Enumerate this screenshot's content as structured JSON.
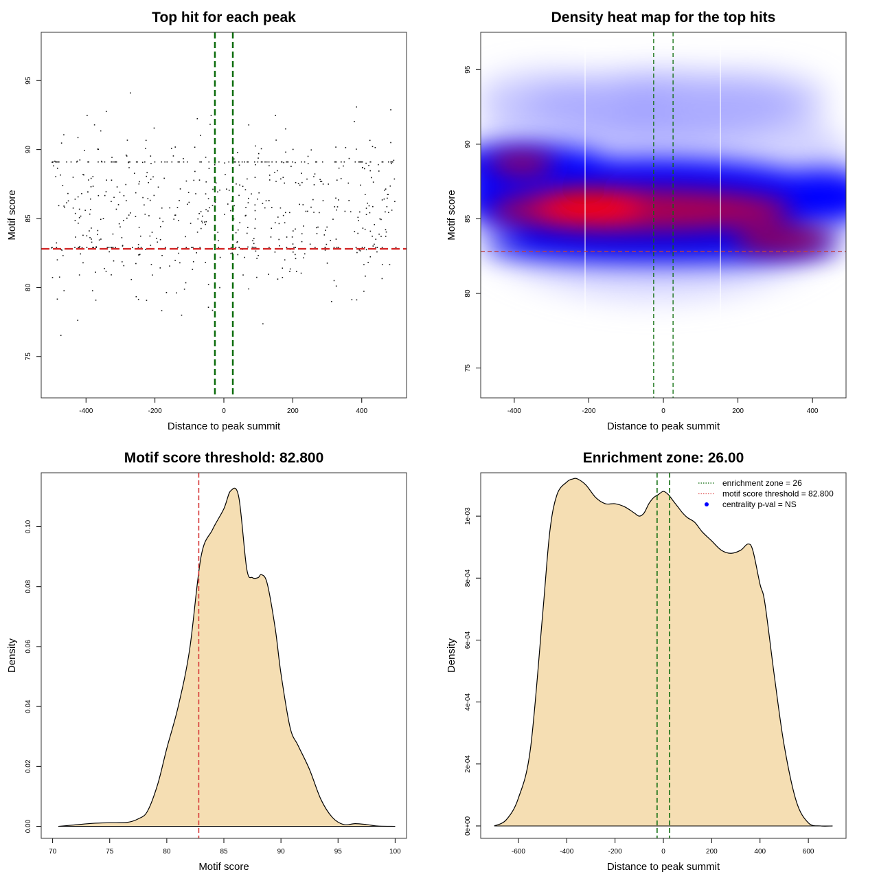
{
  "chart_data": [
    {
      "type": "scatter",
      "title": "Top hit for each peak",
      "xlabel": "Distance to peak summit",
      "ylabel": "Motif score",
      "xlim": [
        -530,
        530
      ],
      "ylim": [
        72,
        98.5
      ],
      "xticks": [
        -400,
        -200,
        0,
        200,
        400
      ],
      "yticks": [
        75,
        80,
        85,
        90,
        95
      ],
      "xtick_labels": [
        "-400",
        "-200",
        "0",
        "200",
        "400"
      ],
      "ytick_labels": [
        "75",
        "80",
        "85",
        "90",
        "95"
      ],
      "enrichment_zone_lines_x": [
        -26,
        26
      ],
      "threshold_y": 82.8,
      "n_points": 650,
      "x_range": [
        -500,
        500
      ],
      "y_center": 85.5,
      "annotations": []
    },
    {
      "type": "heatmap",
      "title": "Density heat map for the top hits",
      "xlabel": "Distance to peak summit",
      "ylabel": "Motif score",
      "xlim": [
        -490,
        490
      ],
      "ylim": [
        73,
        97.5
      ],
      "xticks": [
        -400,
        -200,
        0,
        200,
        400
      ],
      "yticks": [
        75,
        80,
        85,
        90,
        95
      ],
      "xtick_labels": [
        "-400",
        "-200",
        "0",
        "200",
        "400"
      ],
      "ytick_labels": [
        "75",
        "80",
        "85",
        "90",
        "95"
      ],
      "enrichment_zone_lines_x": [
        -26,
        26
      ],
      "threshold_y": 82.8,
      "density_peaks": [
        {
          "x": -200,
          "y": 85.8,
          "level": "high"
        },
        {
          "x": -380,
          "y": 88.7,
          "level": "medium"
        },
        {
          "x": 100,
          "y": 85.2,
          "level": "medium"
        },
        {
          "x": 320,
          "y": 83.5,
          "level": "medium"
        }
      ]
    },
    {
      "type": "area",
      "title": "Motif score threshold: 82.800",
      "xlabel": "Motif score",
      "ylabel": "Density",
      "xlim": [
        69,
        101
      ],
      "ylim": [
        -0.004,
        0.118
      ],
      "xticks": [
        70,
        75,
        80,
        85,
        90,
        95,
        100
      ],
      "yticks": [
        0,
        0.02,
        0.04,
        0.06,
        0.08,
        0.1
      ],
      "xtick_labels": [
        "70",
        "75",
        "80",
        "85",
        "90",
        "95",
        "100"
      ],
      "ytick_labels": [
        "0.00",
        "0.02",
        "0.04",
        "0.06",
        "0.08",
        "0.10"
      ],
      "threshold_x": 82.8,
      "x": [
        70.5,
        72,
        73.5,
        75,
        76.5,
        77.5,
        78.3,
        79.2,
        80,
        81,
        82,
        83,
        84,
        85,
        85.6,
        86.3,
        87,
        87.5,
        88,
        88.3,
        88.8,
        89.5,
        90,
        90.8,
        91.5,
        92.5,
        93.5,
        94.5,
        95.5,
        96.5,
        97.5,
        98.5,
        100
      ],
      "values": [
        0,
        0.0005,
        0.001,
        0.0012,
        0.0013,
        0.0025,
        0.005,
        0.014,
        0.026,
        0.04,
        0.059,
        0.09,
        0.099,
        0.106,
        0.112,
        0.11,
        0.086,
        0.083,
        0.083,
        0.084,
        0.081,
        0.066,
        0.051,
        0.033,
        0.027,
        0.019,
        0.009,
        0.003,
        0.0006,
        0.0009,
        0.0006,
        0.0001,
        0
      ]
    },
    {
      "type": "area",
      "title": "Enrichment zone: 26.00",
      "xlabel": "Distance to peak summit",
      "ylabel": "Density",
      "xlim": [
        -756,
        756
      ],
      "ylim": [
        -4e-05,
        0.00114
      ],
      "xticks": [
        -600,
        -400,
        -200,
        0,
        200,
        400,
        600
      ],
      "yticks": [
        0,
        0.0002,
        0.0004,
        0.0006,
        0.0008,
        0.001
      ],
      "xtick_labels": [
        "-600",
        "-400",
        "-200",
        "0",
        "200",
        "400",
        "600"
      ],
      "ytick_labels": [
        "0e+00",
        "2e-04",
        "4e-04",
        "6e-04",
        "8e-04",
        "1e-03"
      ],
      "enrichment_zone_lines_x": [
        -26,
        26
      ],
      "x": [
        -700,
        -650,
        -600,
        -550,
        -500,
        -470,
        -440,
        -400,
        -375,
        -355,
        -320,
        -280,
        -240,
        -200,
        -160,
        -120,
        -100,
        -80,
        -60,
        -40,
        -20,
        0,
        20,
        40,
        60,
        80,
        100,
        130,
        160,
        200,
        240,
        280,
        320,
        350,
        370,
        400,
        420,
        460,
        500,
        550,
        600,
        650,
        700
      ],
      "values": [
        0,
        2e-05,
        9e-05,
        0.00025,
        0.00068,
        0.00095,
        0.00107,
        0.00111,
        0.00112,
        0.00112,
        0.0011,
        0.00106,
        0.00104,
        0.00104,
        0.00103,
        0.00101,
        0.001,
        0.00101,
        0.00104,
        0.00106,
        0.00107,
        0.00108,
        0.00107,
        0.00105,
        0.00103,
        0.00101,
        0.000995,
        0.00098,
        0.00095,
        0.00092,
        0.00089,
        0.00088,
        0.00089,
        0.00091,
        0.00089,
        0.00078,
        0.00072,
        0.00048,
        0.00026,
        8e-05,
        1e-05,
        0,
        0
      ],
      "legend": [
        {
          "label": "enrichment zone = 26",
          "color": "#006400",
          "style": "dotted-line"
        },
        {
          "label": "motif score threshold = 82.800",
          "color": "#e06060",
          "style": "dotted-line"
        },
        {
          "label": "centrality p-val = NS",
          "color": "#0000ff",
          "style": "point"
        }
      ],
      "legend_position": "top-right"
    }
  ]
}
